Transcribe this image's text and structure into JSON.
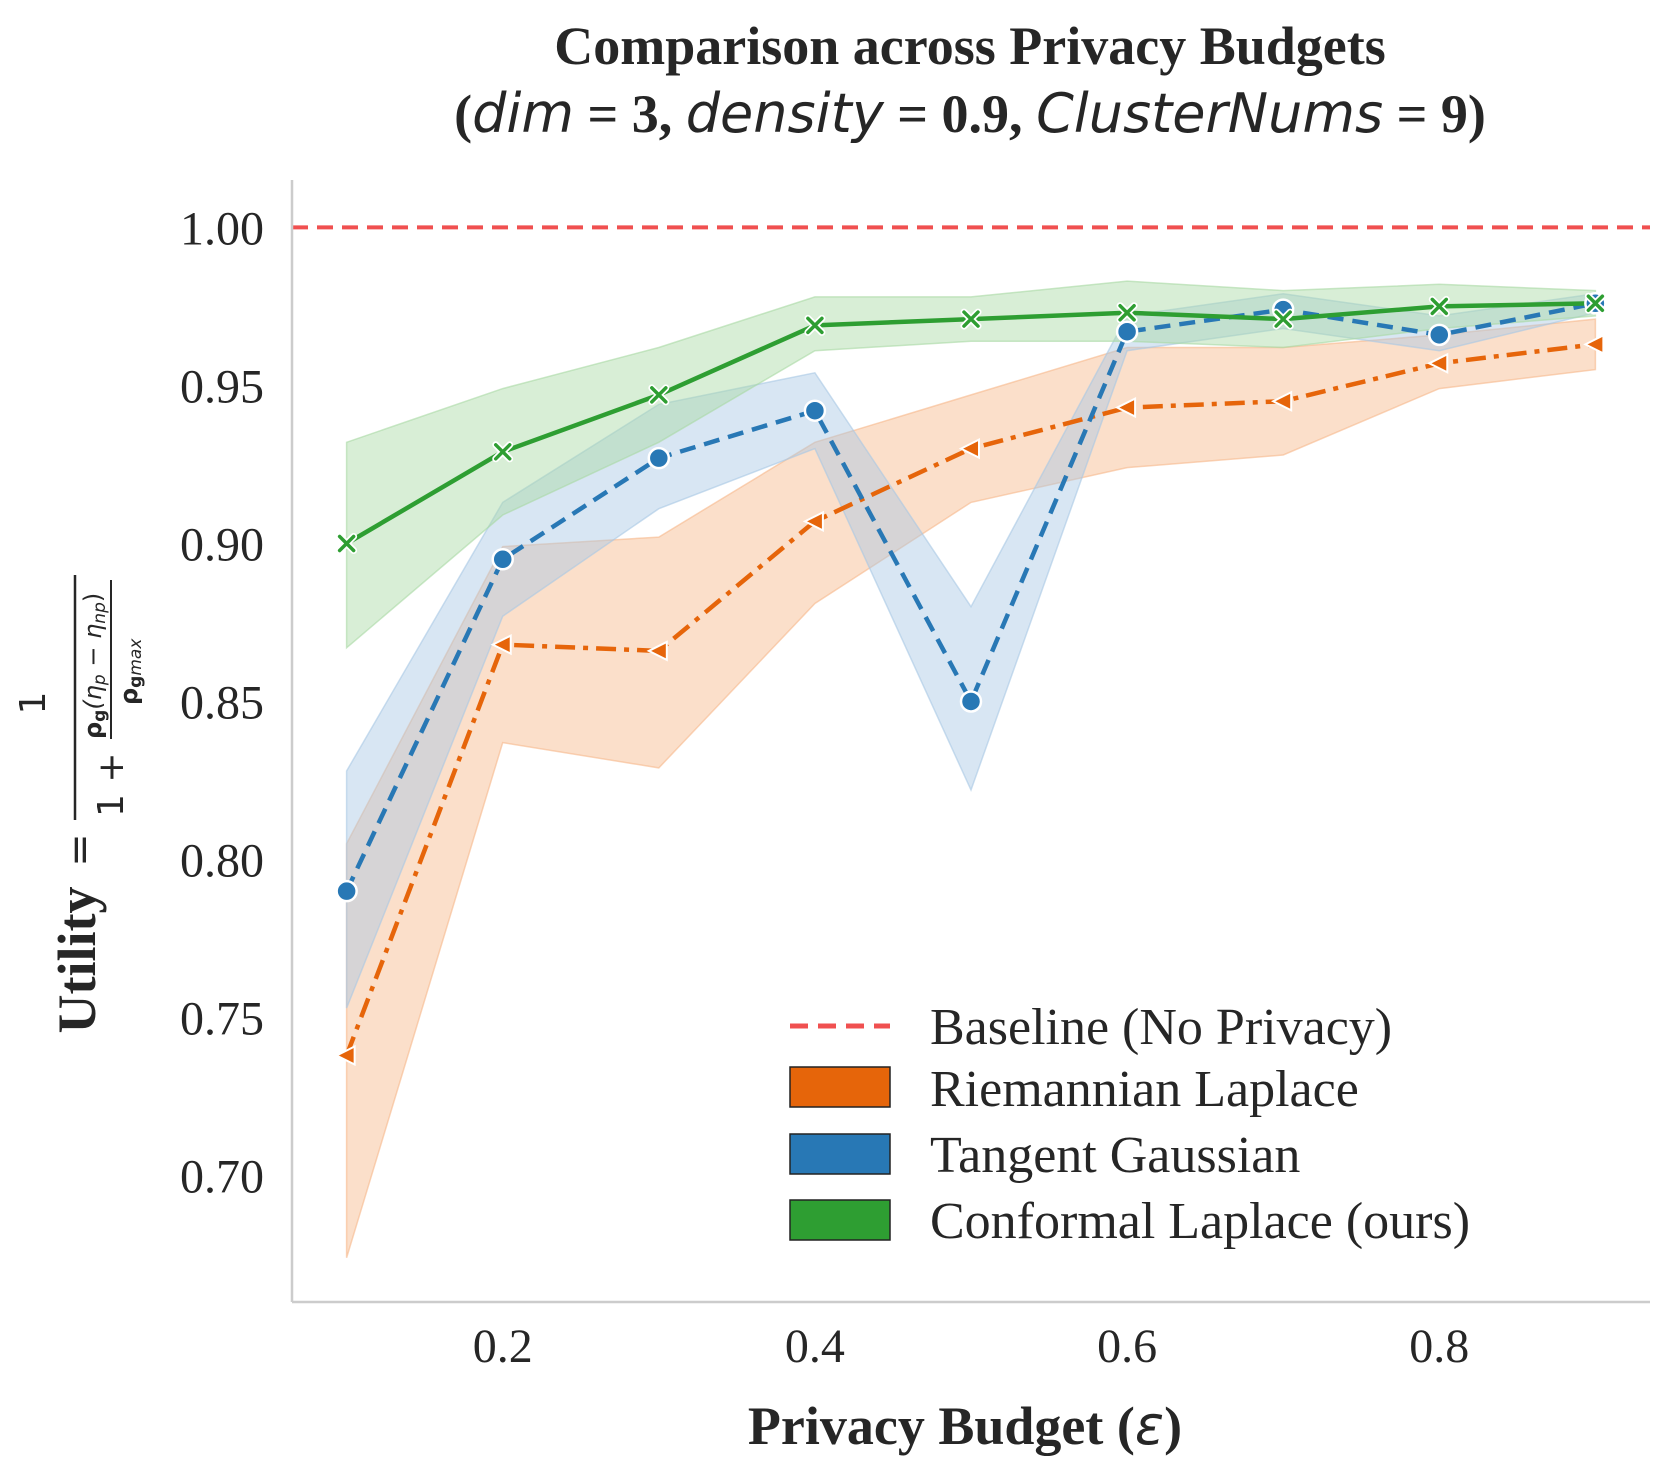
{
  "chart_data": {
    "type": "line",
    "title_line1": "Comparison across Privacy Budgets",
    "title_line2": {
      "open": "(",
      "dim_label": "dim",
      "dim_eq": " = 3, ",
      "density_label": "density",
      "density_eq": " = 0.9, ",
      "cluster_label": "ClusterNums",
      "cluster_eq": " = 9)"
    },
    "xlabel": {
      "text": "Privacy Budget (",
      "symbol": "ε",
      "close": ")"
    },
    "ylabel": {
      "text": "Utility",
      "equals": "=",
      "numerator": "1",
      "denominator_prefix": "1 +",
      "frac_numerator": "ρ",
      "frac_numerator_sub": "g",
      "frac_numerator_args": "(η",
      "frac_p": "p",
      "frac_minus": " − η",
      "frac_np": "np",
      "frac_close": ")",
      "frac_denominator": "ρ",
      "frac_denominator_sub": "g",
      "frac_denominator_max": "max"
    },
    "xlim": [
      0.065,
      0.935
    ],
    "ylim": [
      0.66,
      1.015
    ],
    "xticks": [
      0.2,
      0.4,
      0.6,
      0.8
    ],
    "xtick_labels": [
      "0.2",
      "0.4",
      "0.6",
      "0.8"
    ],
    "yticks": [
      0.7,
      0.75,
      0.8,
      0.85,
      0.9,
      0.95,
      1.0
    ],
    "ytick_labels": [
      "0.70",
      "0.75",
      "0.80",
      "0.85",
      "0.90",
      "0.95",
      "1.00"
    ],
    "x": [
      0.1,
      0.2,
      0.3,
      0.4,
      0.5,
      0.6,
      0.7,
      0.8,
      0.9
    ],
    "baseline": {
      "name": "Baseline (No Privacy)",
      "value": 1.0,
      "color": "#f05050"
    },
    "series": [
      {
        "name": "Riemannian Laplace",
        "color": "#e6650a",
        "fill_color": "#f6b78a",
        "marker": "triangle-left",
        "dash": "dashdot",
        "values": [
          0.738,
          0.868,
          0.866,
          0.907,
          0.93,
          0.943,
          0.945,
          0.957,
          0.963
        ],
        "lower": [
          0.674,
          0.837,
          0.829,
          0.881,
          0.913,
          0.924,
          0.928,
          0.949,
          0.955
        ],
        "upper": [
          0.805,
          0.899,
          0.902,
          0.932,
          0.947,
          0.962,
          0.962,
          0.966,
          0.971
        ]
      },
      {
        "name": "Tangent Gaussian",
        "color": "#2878b5",
        "fill_color": "#a8c8e4",
        "marker": "circle",
        "dash": "dashed",
        "values": [
          0.79,
          0.895,
          0.927,
          0.942,
          0.85,
          0.967,
          0.974,
          0.966,
          0.976
        ],
        "lower": [
          0.753,
          0.877,
          0.911,
          0.93,
          0.822,
          0.961,
          0.968,
          0.961,
          0.973
        ],
        "upper": [
          0.828,
          0.913,
          0.944,
          0.954,
          0.88,
          0.972,
          0.979,
          0.972,
          0.979
        ]
      },
      {
        "name": "Conformal Laplace (ours)",
        "color": "#2e9e32",
        "fill_color": "#a9d9a4",
        "marker": "x",
        "dash": "solid",
        "values": [
          0.9,
          0.929,
          0.947,
          0.969,
          0.971,
          0.973,
          0.971,
          0.975,
          0.976
        ],
        "lower": [
          0.867,
          0.909,
          0.932,
          0.961,
          0.964,
          0.964,
          0.962,
          0.968,
          0.972
        ],
        "upper": [
          0.932,
          0.949,
          0.962,
          0.978,
          0.978,
          0.983,
          0.98,
          0.982,
          0.98
        ]
      }
    ],
    "legend": {
      "location": "lower-right"
    }
  }
}
